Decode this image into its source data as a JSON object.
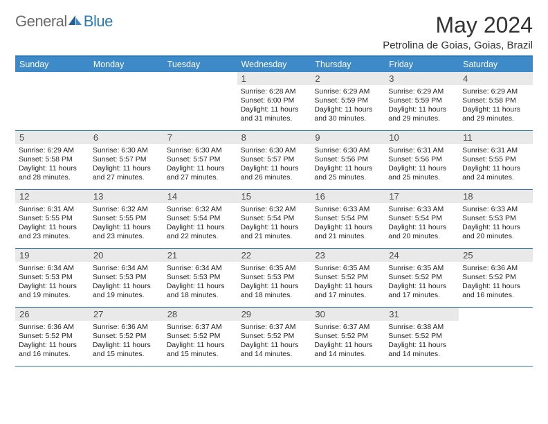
{
  "brand": {
    "part1": "General",
    "part2": "Blue"
  },
  "title": "May 2024",
  "location": "Petrolina de Goias, Goias, Brazil",
  "dow": [
    "Sunday",
    "Monday",
    "Tuesday",
    "Wednesday",
    "Thursday",
    "Friday",
    "Saturday"
  ],
  "colors": {
    "header_bar": "#3e8ac9",
    "rule": "#2a7ab8",
    "daynum_bg": "#e9e9e9",
    "text": "#000000",
    "logo_gray": "#6b6b6b",
    "logo_blue": "#2a7ab8"
  },
  "layout": {
    "columns": 7,
    "rows": 5,
    "first_dow_index": 3,
    "days_in_month": 31
  },
  "weeks": [
    [
      null,
      null,
      null,
      {
        "n": 1,
        "sunrise": "6:28 AM",
        "sunset": "6:00 PM",
        "dl": "11 hours and 31 minutes."
      },
      {
        "n": 2,
        "sunrise": "6:29 AM",
        "sunset": "5:59 PM",
        "dl": "11 hours and 30 minutes."
      },
      {
        "n": 3,
        "sunrise": "6:29 AM",
        "sunset": "5:59 PM",
        "dl": "11 hours and 29 minutes."
      },
      {
        "n": 4,
        "sunrise": "6:29 AM",
        "sunset": "5:58 PM",
        "dl": "11 hours and 29 minutes."
      }
    ],
    [
      {
        "n": 5,
        "sunrise": "6:29 AM",
        "sunset": "5:58 PM",
        "dl": "11 hours and 28 minutes."
      },
      {
        "n": 6,
        "sunrise": "6:30 AM",
        "sunset": "5:57 PM",
        "dl": "11 hours and 27 minutes."
      },
      {
        "n": 7,
        "sunrise": "6:30 AM",
        "sunset": "5:57 PM",
        "dl": "11 hours and 27 minutes."
      },
      {
        "n": 8,
        "sunrise": "6:30 AM",
        "sunset": "5:57 PM",
        "dl": "11 hours and 26 minutes."
      },
      {
        "n": 9,
        "sunrise": "6:30 AM",
        "sunset": "5:56 PM",
        "dl": "11 hours and 25 minutes."
      },
      {
        "n": 10,
        "sunrise": "6:31 AM",
        "sunset": "5:56 PM",
        "dl": "11 hours and 25 minutes."
      },
      {
        "n": 11,
        "sunrise": "6:31 AM",
        "sunset": "5:55 PM",
        "dl": "11 hours and 24 minutes."
      }
    ],
    [
      {
        "n": 12,
        "sunrise": "6:31 AM",
        "sunset": "5:55 PM",
        "dl": "11 hours and 23 minutes."
      },
      {
        "n": 13,
        "sunrise": "6:32 AM",
        "sunset": "5:55 PM",
        "dl": "11 hours and 23 minutes."
      },
      {
        "n": 14,
        "sunrise": "6:32 AM",
        "sunset": "5:54 PM",
        "dl": "11 hours and 22 minutes."
      },
      {
        "n": 15,
        "sunrise": "6:32 AM",
        "sunset": "5:54 PM",
        "dl": "11 hours and 21 minutes."
      },
      {
        "n": 16,
        "sunrise": "6:33 AM",
        "sunset": "5:54 PM",
        "dl": "11 hours and 21 minutes."
      },
      {
        "n": 17,
        "sunrise": "6:33 AM",
        "sunset": "5:54 PM",
        "dl": "11 hours and 20 minutes."
      },
      {
        "n": 18,
        "sunrise": "6:33 AM",
        "sunset": "5:53 PM",
        "dl": "11 hours and 20 minutes."
      }
    ],
    [
      {
        "n": 19,
        "sunrise": "6:34 AM",
        "sunset": "5:53 PM",
        "dl": "11 hours and 19 minutes."
      },
      {
        "n": 20,
        "sunrise": "6:34 AM",
        "sunset": "5:53 PM",
        "dl": "11 hours and 19 minutes."
      },
      {
        "n": 21,
        "sunrise": "6:34 AM",
        "sunset": "5:53 PM",
        "dl": "11 hours and 18 minutes."
      },
      {
        "n": 22,
        "sunrise": "6:35 AM",
        "sunset": "5:53 PM",
        "dl": "11 hours and 18 minutes."
      },
      {
        "n": 23,
        "sunrise": "6:35 AM",
        "sunset": "5:52 PM",
        "dl": "11 hours and 17 minutes."
      },
      {
        "n": 24,
        "sunrise": "6:35 AM",
        "sunset": "5:52 PM",
        "dl": "11 hours and 17 minutes."
      },
      {
        "n": 25,
        "sunrise": "6:36 AM",
        "sunset": "5:52 PM",
        "dl": "11 hours and 16 minutes."
      }
    ],
    [
      {
        "n": 26,
        "sunrise": "6:36 AM",
        "sunset": "5:52 PM",
        "dl": "11 hours and 16 minutes."
      },
      {
        "n": 27,
        "sunrise": "6:36 AM",
        "sunset": "5:52 PM",
        "dl": "11 hours and 15 minutes."
      },
      {
        "n": 28,
        "sunrise": "6:37 AM",
        "sunset": "5:52 PM",
        "dl": "11 hours and 15 minutes."
      },
      {
        "n": 29,
        "sunrise": "6:37 AM",
        "sunset": "5:52 PM",
        "dl": "11 hours and 14 minutes."
      },
      {
        "n": 30,
        "sunrise": "6:37 AM",
        "sunset": "5:52 PM",
        "dl": "11 hours and 14 minutes."
      },
      {
        "n": 31,
        "sunrise": "6:38 AM",
        "sunset": "5:52 PM",
        "dl": "11 hours and 14 minutes."
      },
      null
    ]
  ],
  "labels": {
    "sunrise": "Sunrise:",
    "sunset": "Sunset:",
    "daylight": "Daylight:"
  }
}
